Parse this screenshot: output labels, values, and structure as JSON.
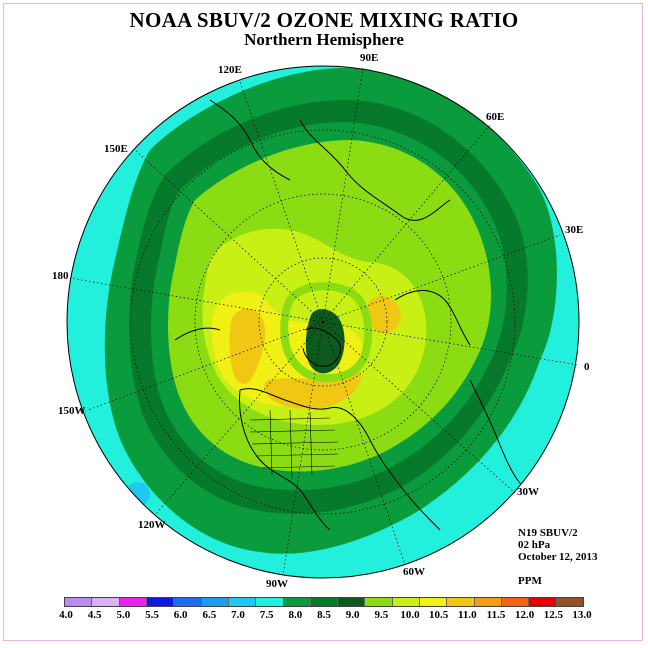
{
  "title": "NOAA SBUV/2 OZONE MIXING RATIO",
  "subtitle": "Northern Hemisphere",
  "info": {
    "instrument": "N19 SBUV/2",
    "level": "02 hPa",
    "date": "October 12, 2013",
    "units": "PPM"
  },
  "longitudes": {
    "lon_90e": "90E",
    "lon_60e": "60E",
    "lon_30e": "30E",
    "lon_0": "0",
    "lon_30w": "30W",
    "lon_60w": "60W",
    "lon_90w": "90W",
    "lon_120w": "120W",
    "lon_150w": "150W",
    "lon_180": "180",
    "lon_150e": "150E",
    "lon_120e": "120E"
  },
  "colorbar": {
    "ticks": [
      "4.0",
      "4.5",
      "5.0",
      "5.5",
      "6.0",
      "6.5",
      "7.0",
      "7.5",
      "8.0",
      "8.5",
      "9.0",
      "9.5",
      "10.0",
      "10.5",
      "11.0",
      "11.5",
      "12.0",
      "12.5",
      "13.0"
    ],
    "colors": [
      "#b98cf0",
      "#d8b2f2",
      "#ee22ee",
      "#1414e6",
      "#1e6cf0",
      "#1e9cf0",
      "#1ec8f0",
      "#22f0dc",
      "#0a9c3c",
      "#067a2a",
      "#0c5a1e",
      "#8cdc14",
      "#c8f014",
      "#f0f014",
      "#f0c814",
      "#f09c14",
      "#f06414",
      "#e60000",
      "#965028"
    ]
  }
}
